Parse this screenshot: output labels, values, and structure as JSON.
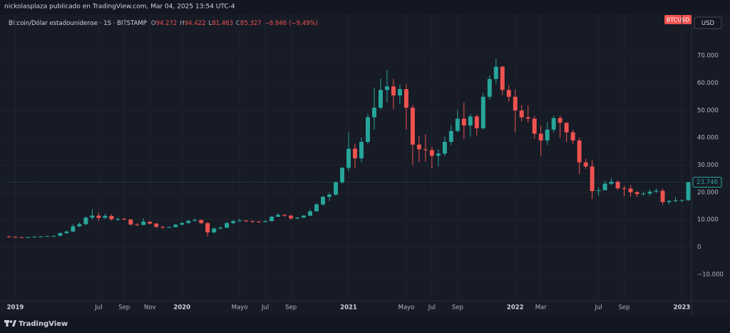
{
  "header": {
    "title": "nickolasplaza publicado en TradingView.com, Mar 04, 2025 13:54 UTC-4"
  },
  "legend": {
    "symbol": "Bitcoin/Dólar estadounidense · 1S · BITSTAMP",
    "ohlc": [
      {
        "prefix": "O",
        "value": 94272,
        "label": "94.272"
      },
      {
        "prefix": "H",
        "value": 94422,
        "label": "94.422"
      },
      {
        "prefix": "L",
        "value": 81463,
        "label": "81.463"
      },
      {
        "prefix": "C",
        "value": 85327,
        "label": "85.327"
      }
    ],
    "change": {
      "value": -8946,
      "label": "−8.946"
    },
    "change_pct": {
      "value": -9.49,
      "label": "(−9,49%)"
    }
  },
  "badges": {
    "ticker": "BTCUSD",
    "currency": "USD"
  },
  "footer": {
    "brand": "TradingView"
  },
  "chart_data": {
    "type": "candlestick",
    "categories": [
      null,
      "2019",
      null,
      null,
      null,
      null,
      null,
      null,
      null,
      null,
      null,
      null,
      null,
      null,
      "Jul",
      null,
      null,
      null,
      "Sep",
      null,
      null,
      null,
      "Nov",
      null,
      null,
      null,
      null,
      "2020",
      null,
      null,
      null,
      null,
      null,
      null,
      null,
      null,
      "Mayo",
      null,
      null,
      null,
      "Jul",
      null,
      null,
      null,
      "Sep",
      null,
      null,
      null,
      null,
      null,
      null,
      null,
      null,
      "2021",
      null,
      null,
      null,
      null,
      null,
      null,
      null,
      null,
      "Mayo",
      null,
      null,
      null,
      "Jul",
      null,
      null,
      null,
      "Sep",
      null,
      null,
      null,
      null,
      null,
      null,
      null,
      null,
      "2022",
      null,
      null,
      null,
      "Mar",
      null,
      null,
      null,
      null,
      null,
      null,
      null,
      null,
      "Jul",
      null,
      null,
      null,
      "Sep",
      null,
      null,
      null,
      null,
      null,
      null,
      null,
      null,
      "2023",
      null
    ],
    "open": [
      3900,
      3700,
      3600,
      3550,
      3650,
      3800,
      3900,
      4000,
      4100,
      5100,
      5700,
      7600,
      8400,
      10800,
      11500,
      10700,
      11400,
      10200,
      10300,
      10100,
      8300,
      8100,
      9300,
      8600,
      7400,
      7200,
      7300,
      8200,
      8800,
      9600,
      9900,
      8800,
      5400,
      6800,
      7100,
      8800,
      9500,
      9700,
      9500,
      9300,
      9200,
      9500,
      11100,
      11800,
      11500,
      10500,
      10800,
      11500,
      13100,
      15600,
      18400,
      19200,
      23700,
      29000,
      36000,
      32500,
      38500,
      47500,
      51000,
      57500,
      58800,
      55500,
      57800,
      51000,
      37500,
      35800,
      35500,
      33400,
      34200,
      38500,
      42500,
      47000,
      44500,
      47800,
      43500,
      55000,
      61500,
      66000,
      57500,
      55000,
      50000,
      47500,
      47000,
      41500,
      39000,
      43000,
      47200,
      45500,
      42000,
      39000,
      31000,
      29500,
      20500,
      20800,
      23200,
      23900,
      21500,
      21400,
      20100,
      19400,
      19600,
      20300,
      20600,
      16500,
      16900,
      17100,
      17200
    ],
    "high": [
      4100,
      3900,
      3700,
      3800,
      3950,
      4050,
      4150,
      4300,
      5400,
      6000,
      8300,
      9000,
      11200,
      13800,
      12500,
      12200,
      12000,
      10900,
      10800,
      10300,
      8700,
      10500,
      9400,
      8800,
      7700,
      7600,
      8500,
      9200,
      9900,
      10500,
      10100,
      9100,
      7200,
      7500,
      9200,
      10000,
      10400,
      10000,
      9800,
      9500,
      9800,
      11400,
      12400,
      12000,
      11800,
      11000,
      11800,
      13800,
      16100,
      18900,
      19900,
      24100,
      29300,
      41900,
      37800,
      40100,
      48800,
      58300,
      61700,
      64800,
      61500,
      59500,
      59600,
      52000,
      40800,
      41300,
      36700,
      35800,
      40500,
      44700,
      50200,
      52900,
      48800,
      48500,
      56500,
      62800,
      69000,
      66300,
      59300,
      57700,
      52000,
      51900,
      48000,
      44500,
      45800,
      48200,
      48100,
      45500,
      42900,
      40000,
      32300,
      31900,
      22000,
      24200,
      25200,
      24400,
      22500,
      22700,
      20400,
      20300,
      21100,
      21500,
      21400,
      17200,
      18300,
      17400,
      23900
    ],
    "low": [
      3500,
      3400,
      3400,
      3450,
      3550,
      3700,
      3800,
      3900,
      4000,
      4900,
      5500,
      7300,
      8000,
      10000,
      9500,
      10400,
      9700,
      9600,
      9900,
      7900,
      7700,
      7900,
      8300,
      6900,
      6500,
      7000,
      7200,
      8000,
      8600,
      9400,
      8400,
      3900,
      5000,
      6400,
      6900,
      8400,
      9300,
      9100,
      8900,
      8900,
      9000,
      9400,
      11000,
      11100,
      10000,
      10200,
      10600,
      11300,
      13000,
      15100,
      16900,
      18700,
      23000,
      27800,
      28800,
      31000,
      37800,
      43000,
      50300,
      53000,
      50500,
      52300,
      43000,
      30000,
      31000,
      31300,
      28800,
      29500,
      33300,
      37300,
      42000,
      39500,
      40500,
      40800,
      43000,
      54000,
      60000,
      55600,
      53200,
      42000,
      46000,
      45600,
      39700,
      33200,
      37400,
      42000,
      40000,
      38500,
      37700,
      26700,
      28600,
      17600,
      18800,
      20700,
      22600,
      20800,
      18600,
      18500,
      18300,
      18800,
      18800,
      19800,
      15500,
      15600,
      16300,
      16500,
      16900
    ],
    "close": [
      3700,
      3600,
      3550,
      3650,
      3800,
      3900,
      4000,
      4100,
      5100,
      5700,
      7600,
      8400,
      10800,
      11500,
      10700,
      11400,
      10200,
      10300,
      10100,
      8300,
      8100,
      9300,
      8600,
      7400,
      7200,
      7300,
      8200,
      8800,
      9600,
      9900,
      8800,
      5400,
      6800,
      7100,
      8800,
      9500,
      9700,
      9500,
      9300,
      9200,
      9500,
      11100,
      11800,
      11500,
      10500,
      10800,
      11500,
      13100,
      15600,
      18400,
      19200,
      23700,
      29000,
      36000,
      32500,
      38500,
      47500,
      51000,
      57500,
      58800,
      55500,
      57800,
      51000,
      37500,
      35800,
      35500,
      33400,
      34200,
      38500,
      42500,
      47000,
      44500,
      47800,
      43500,
      55000,
      61500,
      66000,
      57500,
      55000,
      50000,
      47500,
      47000,
      41500,
      39000,
      43000,
      47200,
      45500,
      42000,
      39000,
      31000,
      29500,
      20500,
      20800,
      23200,
      23900,
      21500,
      21400,
      20100,
      19400,
      19600,
      20300,
      20600,
      16500,
      16900,
      17100,
      17200,
      23746
    ],
    "last_price": {
      "value": 23746,
      "label": "23.746"
    },
    "up_color": "#26a69a",
    "down_color": "#ef5350",
    "ylim": [
      -19700,
      85200
    ],
    "yticks": [
      {
        "value": -10000,
        "label": "−10.000"
      },
      0,
      {
        "value": 10000,
        "label": "10.000"
      },
      {
        "value": 20000,
        "label": "20.000"
      },
      {
        "value": 30000,
        "label": "30.000"
      },
      {
        "value": 40000,
        "label": "40.000"
      },
      {
        "value": 50000,
        "label": "50.000"
      },
      {
        "value": 60000,
        "label": "60.000"
      },
      {
        "value": 70000,
        "label": "70.000"
      }
    ],
    "grid": true
  }
}
